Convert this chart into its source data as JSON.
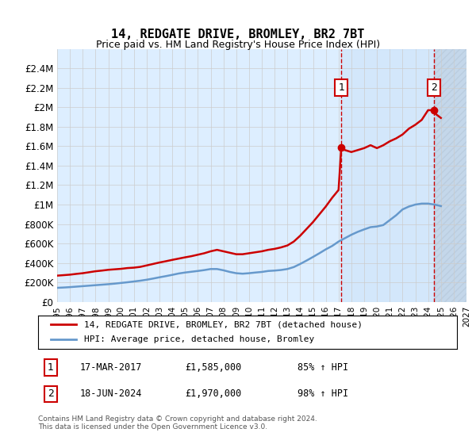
{
  "title": "14, REDGATE DRIVE, BROMLEY, BR2 7BT",
  "subtitle": "Price paid vs. HM Land Registry's House Price Index (HPI)",
  "legend_line1": "14, REDGATE DRIVE, BROMLEY, BR2 7BT (detached house)",
  "legend_line2": "HPI: Average price, detached house, Bromley",
  "transaction1_label": "1",
  "transaction1_date": "17-MAR-2017",
  "transaction1_price": "£1,585,000",
  "transaction1_hpi": "85% ↑ HPI",
  "transaction2_label": "2",
  "transaction2_date": "18-JUN-2024",
  "transaction2_price": "£1,970,000",
  "transaction2_hpi": "98% ↑ HPI",
  "copyright": "Contains HM Land Registry data © Crown copyright and database right 2024.\nThis data is licensed under the Open Government Licence v3.0.",
  "xlim": [
    1995,
    2027
  ],
  "ylim": [
    0,
    2600000
  ],
  "yticks": [
    0,
    200000,
    400000,
    600000,
    800000,
    1000000,
    1200000,
    1400000,
    1600000,
    1800000,
    2000000,
    2200000,
    2400000
  ],
  "ytick_labels": [
    "£0",
    "£200K",
    "£400K",
    "£600K",
    "£800K",
    "£1M",
    "£1.2M",
    "£1.4M",
    "£1.6M",
    "£1.8M",
    "£2M",
    "£2.2M",
    "£2.4M"
  ],
  "xticks": [
    1995,
    1996,
    1997,
    1998,
    1999,
    2000,
    2001,
    2002,
    2003,
    2004,
    2005,
    2006,
    2007,
    2008,
    2009,
    2010,
    2011,
    2012,
    2013,
    2014,
    2015,
    2016,
    2017,
    2018,
    2019,
    2020,
    2021,
    2022,
    2023,
    2024,
    2025,
    2026,
    2027
  ],
  "transaction1_x": 2017.21,
  "transaction2_x": 2024.46,
  "red_color": "#cc0000",
  "blue_color": "#6699cc",
  "bg_color": "#ddeeff",
  "hatch_color": "#aabbdd",
  "grid_color": "#cccccc",
  "marker_box_color": "#cc0000",
  "red_x": [
    1995,
    1995.5,
    1996,
    1996.5,
    1997,
    1997.5,
    1998,
    1998.5,
    1999,
    1999.5,
    2000,
    2000.5,
    2001,
    2001.5,
    2002,
    2002.5,
    2003,
    2003.5,
    2004,
    2004.5,
    2005,
    2005.5,
    2006,
    2006.5,
    2007,
    2007.5,
    2008,
    2008.5,
    2009,
    2009.5,
    2010,
    2010.5,
    2011,
    2011.5,
    2012,
    2012.5,
    2013,
    2013.5,
    2014,
    2014.5,
    2015,
    2015.5,
    2016,
    2016.5,
    2017,
    2017.21,
    2017.5,
    2018,
    2018.5,
    2019,
    2019.5,
    2020,
    2020.5,
    2021,
    2021.5,
    2022,
    2022.5,
    2023,
    2023.5,
    2024,
    2024.46,
    2024.5,
    2025
  ],
  "red_y": [
    270000,
    275000,
    280000,
    288000,
    295000,
    305000,
    315000,
    322000,
    330000,
    335000,
    340000,
    348000,
    352000,
    360000,
    375000,
    390000,
    405000,
    418000,
    432000,
    445000,
    458000,
    470000,
    485000,
    500000,
    520000,
    535000,
    520000,
    505000,
    490000,
    490000,
    500000,
    510000,
    520000,
    535000,
    545000,
    560000,
    580000,
    620000,
    680000,
    750000,
    820000,
    900000,
    980000,
    1070000,
    1150000,
    1585000,
    1560000,
    1540000,
    1560000,
    1580000,
    1610000,
    1580000,
    1610000,
    1650000,
    1680000,
    1720000,
    1780000,
    1820000,
    1870000,
    1970000,
    1970000,
    1940000,
    1890000
  ],
  "blue_x": [
    1995,
    1995.5,
    1996,
    1996.5,
    1997,
    1997.5,
    1998,
    1998.5,
    1999,
    1999.5,
    2000,
    2000.5,
    2001,
    2001.5,
    2002,
    2002.5,
    2003,
    2003.5,
    2004,
    2004.5,
    2005,
    2005.5,
    2006,
    2006.5,
    2007,
    2007.5,
    2008,
    2008.5,
    2009,
    2009.5,
    2010,
    2010.5,
    2011,
    2011.5,
    2012,
    2012.5,
    2013,
    2013.5,
    2014,
    2014.5,
    2015,
    2015.5,
    2016,
    2016.5,
    2017,
    2017.5,
    2018,
    2018.5,
    2019,
    2019.5,
    2020,
    2020.5,
    2021,
    2021.5,
    2022,
    2022.5,
    2023,
    2023.5,
    2024,
    2024.5,
    2025
  ],
  "blue_y": [
    145000,
    148000,
    152000,
    157000,
    162000,
    167000,
    172000,
    177000,
    182000,
    188000,
    195000,
    202000,
    210000,
    218000,
    228000,
    240000,
    253000,
    265000,
    278000,
    292000,
    302000,
    310000,
    318000,
    327000,
    338000,
    338000,
    325000,
    308000,
    295000,
    290000,
    295000,
    302000,
    308000,
    318000,
    322000,
    328000,
    338000,
    358000,
    390000,
    425000,
    462000,
    500000,
    540000,
    575000,
    620000,
    655000,
    690000,
    720000,
    745000,
    768000,
    775000,
    790000,
    840000,
    890000,
    950000,
    980000,
    1000000,
    1010000,
    1010000,
    1000000,
    985000
  ]
}
